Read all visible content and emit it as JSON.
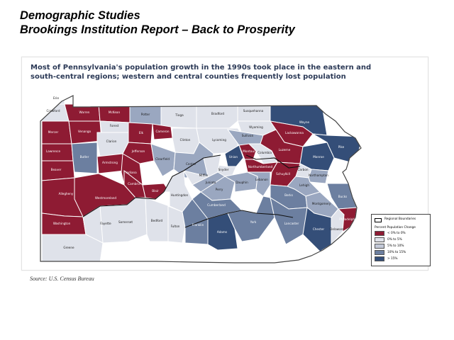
{
  "slide": {
    "title_line1": "Demographic Studies",
    "title_line2": "Brookings Institution Report – Back to Prosperity"
  },
  "map": {
    "heading_line1": "Most of Pennsylvania's population growth in the 1990s took place in the eastern and",
    "heading_line2": "south-central regions; western and central counties frequently lost population",
    "colors": {
      "loss": "#8e1b33",
      "low": "#dfe2ea",
      "mid_low": "#c3c9d8",
      "mid": "#9aa7c0",
      "mid_high": "#6c7fa0",
      "high": "#344e78",
      "outline": "#ffffff"
    },
    "counties": [
      {
        "name": "Erie",
        "class": "low"
      },
      {
        "name": "Crawford",
        "class": "low"
      },
      {
        "name": "Warren",
        "class": "loss"
      },
      {
        "name": "McKean",
        "class": "loss"
      },
      {
        "name": "Potter",
        "class": "mid"
      },
      {
        "name": "Tioga",
        "class": "low"
      },
      {
        "name": "Bradford",
        "class": "low"
      },
      {
        "name": "Susquehanna",
        "class": "low"
      },
      {
        "name": "Wayne",
        "class": "high"
      },
      {
        "name": "Wyoming",
        "class": "low"
      },
      {
        "name": "Lackawanna",
        "class": "loss"
      },
      {
        "name": "Pike",
        "class": "high"
      },
      {
        "name": "Mercer",
        "class": "loss"
      },
      {
        "name": "Venango",
        "class": "loss"
      },
      {
        "name": "Forest",
        "class": "low"
      },
      {
        "name": "Elk",
        "class": "loss"
      },
      {
        "name": "Cameron",
        "class": "loss"
      },
      {
        "name": "Clinton",
        "class": "low"
      },
      {
        "name": "Lycoming",
        "class": "low"
      },
      {
        "name": "Sullivan",
        "class": "mid"
      },
      {
        "name": "Luzerne",
        "class": "loss"
      },
      {
        "name": "Monroe",
        "class": "high"
      },
      {
        "name": "Lawrence",
        "class": "loss"
      },
      {
        "name": "Butler",
        "class": "mid_high"
      },
      {
        "name": "Clarion",
        "class": "low"
      },
      {
        "name": "Jefferson",
        "class": "loss"
      },
      {
        "name": "Clearfield",
        "class": "mid"
      },
      {
        "name": "Centre",
        "class": "mid"
      },
      {
        "name": "Union",
        "class": "high"
      },
      {
        "name": "Montour",
        "class": "loss"
      },
      {
        "name": "Columbia",
        "class": "low"
      },
      {
        "name": "Carbon",
        "class": "low"
      },
      {
        "name": "Northampton",
        "class": "mid"
      },
      {
        "name": "Beaver",
        "class": "loss"
      },
      {
        "name": "Armstrong",
        "class": "loss"
      },
      {
        "name": "Indiana",
        "class": "loss"
      },
      {
        "name": "Snyder",
        "class": "low"
      },
      {
        "name": "Northumberland",
        "class": "loss"
      },
      {
        "name": "Schuylkill",
        "class": "loss"
      },
      {
        "name": "Lehigh",
        "class": "mid"
      },
      {
        "name": "Allegheny",
        "class": "loss"
      },
      {
        "name": "Westmoreland",
        "class": "loss"
      },
      {
        "name": "Cambria",
        "class": "loss"
      },
      {
        "name": "Blair",
        "class": "loss"
      },
      {
        "name": "Huntingdon",
        "class": "low"
      },
      {
        "name": "Mifflin",
        "class": "low"
      },
      {
        "name": "Juniata",
        "class": "mid"
      },
      {
        "name": "Perry",
        "class": "mid"
      },
      {
        "name": "Dauphin",
        "class": "mid"
      },
      {
        "name": "Lebanon",
        "class": "mid"
      },
      {
        "name": "Berks",
        "class": "mid_high"
      },
      {
        "name": "Bucks",
        "class": "mid_high"
      },
      {
        "name": "Montgomery",
        "class": "mid"
      },
      {
        "name": "Washington",
        "class": "loss"
      },
      {
        "name": "Fayette",
        "class": "low"
      },
      {
        "name": "Greene",
        "class": "low"
      },
      {
        "name": "Somerset",
        "class": "low"
      },
      {
        "name": "Bedford",
        "class": "low"
      },
      {
        "name": "Fulton",
        "class": "low"
      },
      {
        "name": "Franklin",
        "class": "mid_high"
      },
      {
        "name": "Cumberland",
        "class": "mid_high"
      },
      {
        "name": "Adams",
        "class": "high"
      },
      {
        "name": "York",
        "class": "mid_high"
      },
      {
        "name": "Lancaster",
        "class": "mid_high"
      },
      {
        "name": "Chester",
        "class": "high"
      },
      {
        "name": "Delaware",
        "class": "low"
      },
      {
        "name": "Philadelphia",
        "class": "loss"
      }
    ],
    "legend": {
      "boundary_label": "Regional Boundaries",
      "title": "Percent Population Change",
      "entries": [
        {
          "label": "< 0% to 0%",
          "class": "loss"
        },
        {
          "label": "0% to 5%",
          "class": "low"
        },
        {
          "label": "5% to 10%",
          "class": "mid_low"
        },
        {
          "label": "10% to 15%",
          "class": "mid_high"
        },
        {
          "label": "> 15%",
          "class": "high"
        }
      ]
    },
    "source": "Source: U.S. Census Bureau"
  }
}
